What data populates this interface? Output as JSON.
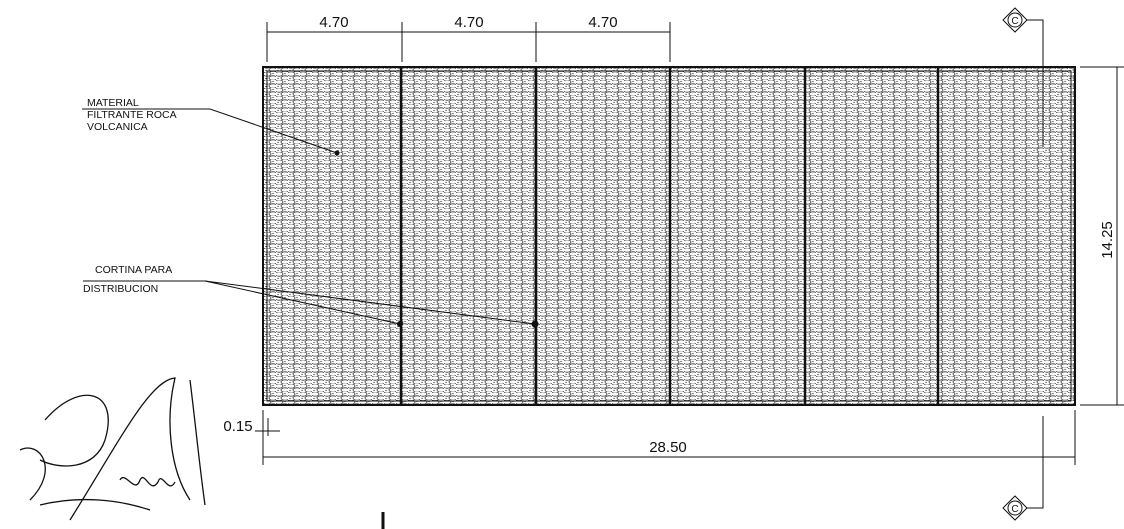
{
  "labels": {
    "material": [
      "MATERIAL",
      "FILTRANTE ROCA",
      "VOLCANICA"
    ],
    "cortina": [
      "CORTINA PARA",
      "DISTRIBUCION"
    ]
  },
  "dimensions": {
    "cells": [
      "4.70",
      "4.70",
      "4.70"
    ],
    "height": "14.25",
    "wall": "0.15",
    "length": "28.50"
  },
  "section_markers": [
    "C",
    "C"
  ]
}
